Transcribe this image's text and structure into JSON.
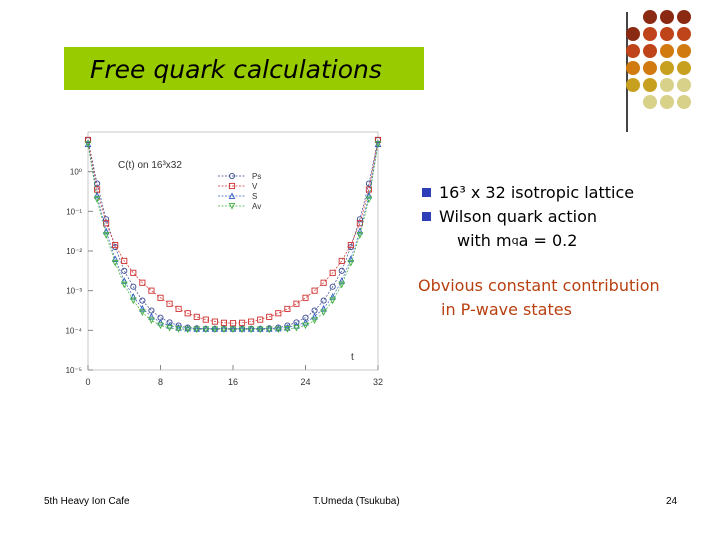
{
  "slide": {
    "title": "Free quark calculations",
    "bullets": [
      {
        "text": "16³ x 32 isotropic lattice"
      },
      {
        "text": "Wilson quark action"
      },
      {
        "prefix": "with m",
        "sub": "q",
        "suffix": "a = 0.2"
      }
    ],
    "note_lines": [
      "Obvious constant contribution",
      "in P-wave states"
    ],
    "footer": {
      "left": "5th Heavy Ion Cafe",
      "center": "T.Umeda (Tsukuba)",
      "page": "24"
    },
    "colors": {
      "title_bg": "#99cc00",
      "accent_orange": "#b84010",
      "bullet": "#2d3fb8"
    }
  },
  "decor_dots": {
    "colors": [
      "#8b2a12",
      "#c0441a",
      "#d07a10",
      "#c8a020",
      "#d7d18a"
    ]
  },
  "chart_data": {
    "type": "scatter",
    "title": "C(t) on 16³x32",
    "xlabel": "t",
    "ylabel": "",
    "x_ticks": [
      "0",
      "8",
      "16",
      "24",
      "32"
    ],
    "y_ticks": [
      "10⁰",
      "10⁻¹",
      "10⁻²",
      "10⁻³",
      "10⁻⁴",
      "10⁻⁵"
    ],
    "xlim": [
      0,
      32
    ],
    "ylog_range": [
      -5,
      1
    ],
    "legend_position": "top-right",
    "series": [
      {
        "name": "Ps",
        "color": "#3a4a90",
        "marker": "circle",
        "x": [
          0,
          1,
          2,
          3,
          4,
          5,
          6,
          7,
          8,
          9,
          10,
          11,
          12,
          13,
          14,
          15,
          16,
          17,
          18,
          19,
          20,
          21,
          22,
          23,
          24,
          25,
          26,
          27,
          28,
          29,
          30,
          31,
          32
        ],
        "logy": [
          0.8,
          -0.3,
          -1.2,
          -1.9,
          -2.5,
          -2.9,
          -3.25,
          -3.5,
          -3.68,
          -3.8,
          -3.88,
          -3.93,
          -3.95,
          -3.96,
          -3.96,
          -3.96,
          -3.96,
          -3.96,
          -3.96,
          -3.96,
          -3.95,
          -3.93,
          -3.88,
          -3.8,
          -3.68,
          -3.5,
          -3.25,
          -2.9,
          -2.5,
          -1.9,
          -1.2,
          -0.3,
          0.8
        ]
      },
      {
        "name": "V",
        "color": "#d03030",
        "marker": "square",
        "x": [
          0,
          1,
          2,
          3,
          4,
          5,
          6,
          7,
          8,
          9,
          10,
          11,
          12,
          13,
          14,
          15,
          16,
          17,
          18,
          19,
          20,
          21,
          22,
          23,
          24,
          25,
          26,
          27,
          28,
          29,
          30,
          31,
          32
        ],
        "logy": [
          0.8,
          -0.45,
          -1.3,
          -1.85,
          -2.25,
          -2.55,
          -2.8,
          -3.0,
          -3.18,
          -3.33,
          -3.46,
          -3.57,
          -3.66,
          -3.73,
          -3.78,
          -3.81,
          -3.82,
          -3.81,
          -3.78,
          -3.73,
          -3.66,
          -3.57,
          -3.46,
          -3.33,
          -3.18,
          -3.0,
          -2.8,
          -2.55,
          -2.25,
          -1.85,
          -1.3,
          -0.45,
          0.8
        ]
      },
      {
        "name": "S",
        "color": "#3060c0",
        "marker": "triangle",
        "x": [
          0,
          1,
          2,
          3,
          4,
          5,
          6,
          7,
          8,
          9,
          10,
          11,
          12,
          13,
          14,
          15,
          16,
          17,
          18,
          19,
          20,
          21,
          22,
          23,
          24,
          25,
          26,
          27,
          28,
          29,
          30,
          31,
          32
        ],
        "logy": [
          0.7,
          -0.6,
          -1.5,
          -2.2,
          -2.75,
          -3.15,
          -3.45,
          -3.65,
          -3.8,
          -3.88,
          -3.93,
          -3.95,
          -3.96,
          -3.96,
          -3.96,
          -3.96,
          -3.96,
          -3.96,
          -3.96,
          -3.96,
          -3.96,
          -3.95,
          -3.93,
          -3.88,
          -3.8,
          -3.65,
          -3.45,
          -3.15,
          -2.75,
          -2.2,
          -1.5,
          -0.6,
          0.7
        ]
      },
      {
        "name": "Av",
        "color": "#40b040",
        "marker": "invtriangle",
        "x": [
          0,
          1,
          2,
          3,
          4,
          5,
          6,
          7,
          8,
          9,
          10,
          11,
          12,
          13,
          14,
          15,
          16,
          17,
          18,
          19,
          20,
          21,
          22,
          23,
          24,
          25,
          26,
          27,
          28,
          29,
          30,
          31,
          32
        ],
        "logy": [
          0.7,
          -0.7,
          -1.6,
          -2.3,
          -2.85,
          -3.25,
          -3.55,
          -3.75,
          -3.88,
          -3.94,
          -3.97,
          -3.98,
          -3.98,
          -3.98,
          -3.98,
          -3.98,
          -3.98,
          -3.98,
          -3.98,
          -3.98,
          -3.98,
          -3.98,
          -3.97,
          -3.94,
          -3.88,
          -3.75,
          -3.55,
          -3.25,
          -2.85,
          -2.3,
          -1.6,
          -0.7,
          0.7
        ]
      }
    ]
  }
}
